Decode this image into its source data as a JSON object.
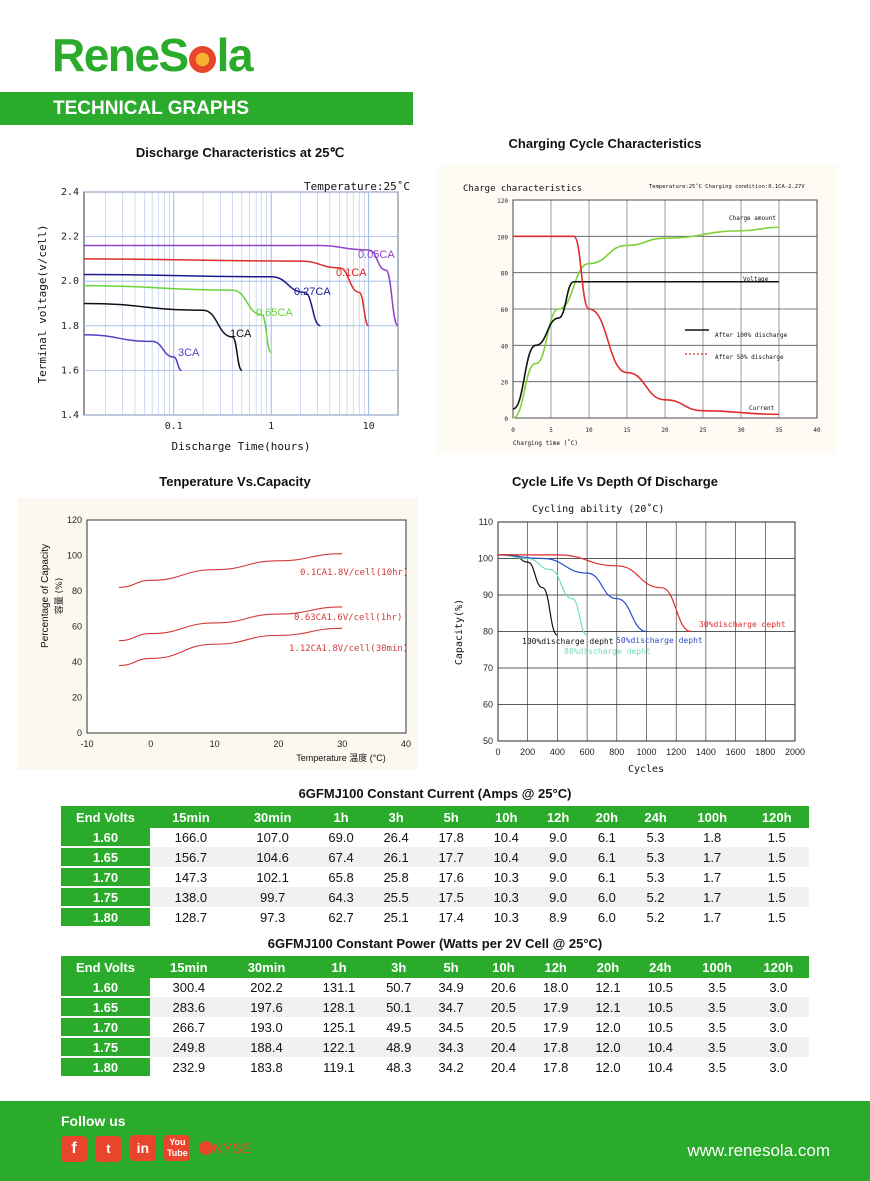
{
  "brand": {
    "name_part1": "Rene",
    "name_part2": "S",
    "name_part3": "la"
  },
  "section_title": "TECHNICAL GRAPHS",
  "charts": {
    "discharge": {
      "title": "Discharge Characteristics at 25℃",
      "annotation": "Temperature:25˚C",
      "xlabel": "Discharge Time(hours)",
      "ylabel": "Terminal voltage(v/cell)"
    },
    "charging": {
      "title": "Charging Cycle Characteristics",
      "subtitle": "Charge characteristics",
      "condition": "Temperature:25˚C Charging condition:0.1CA-2.27V",
      "xlabel": "Charging time (˚C)"
    },
    "temperature": {
      "title": "Tenperature Vs.Capacity",
      "xlabel": "Temperature 温度 (°C)",
      "ylabel": "Percentage of Capacity",
      "ylabel2": "容量 (%)"
    },
    "cycle": {
      "title": "Cycle Life Vs Depth Of Discharge",
      "subtitle": "Cycling ability (20˚C)",
      "xlabel": "Cycles",
      "ylabel": "Capacity(%)"
    }
  },
  "chart_data": [
    {
      "type": "line",
      "title": "Discharge Characteristics at 25℃",
      "xlabel": "Discharge Time(hours)",
      "ylabel": "Terminal voltage(v/cell)",
      "xscale": "log",
      "xlim": [
        0.012,
        20
      ],
      "ylim": [
        1.4,
        2.4
      ],
      "xticks": [
        "0.1",
        "1",
        "10"
      ],
      "yticks": [
        "1.4",
        "1.6",
        "1.8",
        "2.0",
        "2.2",
        "2.4"
      ],
      "grid": true,
      "series": [
        {
          "name": "0.05CA",
          "color": "#8e44c8",
          "x": [
            0.012,
            3,
            10,
            15,
            20
          ],
          "y": [
            2.16,
            2.16,
            2.14,
            2.05,
            1.8
          ]
        },
        {
          "name": "0.1CA",
          "color": "#e02b2b",
          "x": [
            0.012,
            2,
            5,
            8,
            10
          ],
          "y": [
            2.1,
            2.09,
            2.06,
            1.95,
            1.8
          ]
        },
        {
          "name": "0.27CA",
          "color": "#1a1a8c",
          "x": [
            0.012,
            1,
            2.2,
            3.2
          ],
          "y": [
            2.03,
            2.02,
            1.95,
            1.8
          ]
        },
        {
          "name": "0.65CA",
          "color": "#6ad33a",
          "x": [
            0.012,
            0.4,
            0.8,
            1.0
          ],
          "y": [
            1.98,
            1.96,
            1.85,
            1.68
          ]
        },
        {
          "name": "1CA",
          "color": "#111111",
          "x": [
            0.012,
            0.2,
            0.4,
            0.5
          ],
          "y": [
            1.9,
            1.87,
            1.75,
            1.6
          ]
        },
        {
          "name": "3CA",
          "color": "#5a3cc8",
          "x": [
            0.012,
            0.06,
            0.1,
            0.12
          ],
          "y": [
            1.76,
            1.73,
            1.66,
            1.6
          ]
        }
      ]
    },
    {
      "type": "line",
      "title": "Charging Cycle Characteristics",
      "xlabel": "Charging time (˚C)",
      "xlim": [
        0,
        40
      ],
      "ylim": [
        0,
        120
      ],
      "xticks": [
        "0",
        "5",
        "10",
        "15",
        "20",
        "25",
        "30",
        "35",
        "40"
      ],
      "yticks": [
        "0",
        "20",
        "40",
        "60",
        "80",
        "100",
        "120"
      ],
      "series": [
        {
          "name": "Charge amount",
          "color": "#7dd23a",
          "x": [
            0,
            3,
            6,
            10,
            15,
            20,
            30,
            35
          ],
          "y": [
            0,
            30,
            60,
            85,
            95,
            99,
            103,
            105
          ]
        },
        {
          "name": "Voltage",
          "color": "#111111",
          "x": [
            0,
            3,
            6,
            8,
            35
          ],
          "y": [
            5,
            40,
            55,
            75,
            75
          ]
        },
        {
          "name": "Current",
          "color": "#e02b2b",
          "x": [
            0,
            8,
            10,
            15,
            20,
            25,
            35
          ],
          "y": [
            100,
            100,
            60,
            25,
            10,
            4,
            2
          ]
        }
      ],
      "legend": [
        "After 100% discharge",
        "After 50% discharge"
      ]
    },
    {
      "type": "line",
      "title": "Tenperature Vs.Capacity",
      "xlabel": "Temperature 温度 (°C)",
      "ylabel": "Percentage of Capacity",
      "xlim": [
        -10,
        40
      ],
      "ylim": [
        0,
        120
      ],
      "xticks": [
        "-10",
        "0",
        "10",
        "20",
        "30",
        "40"
      ],
      "yticks": [
        "0",
        "20",
        "40",
        "60",
        "80",
        "100",
        "120"
      ],
      "series": [
        {
          "name": "0.1CA1.8V/cell(10hr)",
          "color": "#d23a3a",
          "x": [
            -5,
            0,
            10,
            20,
            30
          ],
          "y": [
            82,
            86,
            92,
            97,
            101
          ]
        },
        {
          "name": "0.63CA1.6V/cell(1hr)",
          "color": "#d23a3a",
          "x": [
            -5,
            0,
            10,
            20,
            30
          ],
          "y": [
            52,
            56,
            62,
            67,
            71
          ]
        },
        {
          "name": "1.12CA1.8V/cell(30min)",
          "color": "#d23a3a",
          "x": [
            -5,
            0,
            10,
            20,
            30
          ],
          "y": [
            38,
            42,
            50,
            55,
            59
          ]
        }
      ]
    },
    {
      "type": "line",
      "title": "Cycle Life Vs Depth Of Discharge",
      "xlabel": "Cycles",
      "ylabel": "Capacity(%)",
      "xlim": [
        0,
        2000
      ],
      "ylim": [
        50,
        110
      ],
      "xticks": [
        "0",
        "200",
        "400",
        "600",
        "800",
        "1000",
        "1200",
        "1400",
        "1600",
        "1800",
        "2000"
      ],
      "yticks": [
        "50",
        "60",
        "70",
        "80",
        "90",
        "100",
        "110"
      ],
      "series": [
        {
          "name": "100%discharge depht",
          "color": "#111111",
          "x": [
            0,
            100,
            200,
            300,
            400
          ],
          "y": [
            101,
            101,
            99,
            92,
            79
          ]
        },
        {
          "name": "80%discharge depht",
          "color": "#6fe0b0",
          "x": [
            0,
            200,
            350,
            500,
            600
          ],
          "y": [
            101,
            100,
            97,
            89,
            79
          ]
        },
        {
          "name": "50%discharge depht",
          "color": "#2a50c8",
          "x": [
            0,
            300,
            600,
            800,
            1000
          ],
          "y": [
            101,
            100,
            96,
            89,
            80
          ]
        },
        {
          "name": "30%discharge depht",
          "color": "#e02b2b",
          "x": [
            0,
            400,
            800,
            1100,
            1300
          ],
          "y": [
            101,
            101,
            98,
            92,
            80
          ]
        }
      ]
    }
  ],
  "tables": {
    "headers": [
      "End Volts",
      "15min",
      "30min",
      "1h",
      "3h",
      "5h",
      "10h",
      "12h",
      "20h",
      "24h",
      "100h",
      "120h"
    ],
    "current": {
      "title": "6GFMJ100 Constant Current (Amps @ 25°C)",
      "rows": [
        [
          "1.60",
          "166.0",
          "107.0",
          "69.0",
          "26.4",
          "17.8",
          "10.4",
          "9.0",
          "6.1",
          "5.3",
          "1.8",
          "1.5"
        ],
        [
          "1.65",
          "156.7",
          "104.6",
          "67.4",
          "26.1",
          "17.7",
          "10.4",
          "9.0",
          "6.1",
          "5.3",
          "1.7",
          "1.5"
        ],
        [
          "1.70",
          "147.3",
          "102.1",
          "65.8",
          "25.8",
          "17.6",
          "10.3",
          "9.0",
          "6.1",
          "5.3",
          "1.7",
          "1.5"
        ],
        [
          "1.75",
          "138.0",
          "99.7",
          "64.3",
          "25.5",
          "17.5",
          "10.3",
          "9.0",
          "6.0",
          "5.2",
          "1.7",
          "1.5"
        ],
        [
          "1.80",
          "128.7",
          "97.3",
          "62.7",
          "25.1",
          "17.4",
          "10.3",
          "8.9",
          "6.0",
          "5.2",
          "1.7",
          "1.5"
        ]
      ]
    },
    "power": {
      "title": "6GFMJ100 Constant Power (Watts per 2V Cell @ 25°C)",
      "rows": [
        [
          "1.60",
          "300.4",
          "202.2",
          "131.1",
          "50.7",
          "34.9",
          "20.6",
          "18.0",
          "12.1",
          "10.5",
          "3.5",
          "3.0"
        ],
        [
          "1.65",
          "283.6",
          "197.6",
          "128.1",
          "50.1",
          "34.7",
          "20.5",
          "17.9",
          "12.1",
          "10.5",
          "3.5",
          "3.0"
        ],
        [
          "1.70",
          "266.7",
          "193.0",
          "125.1",
          "49.5",
          "34.5",
          "20.5",
          "17.9",
          "12.0",
          "10.5",
          "3.5",
          "3.0"
        ],
        [
          "1.75",
          "249.8",
          "188.4",
          "122.1",
          "48.9",
          "34.3",
          "20.4",
          "17.8",
          "12.0",
          "10.4",
          "3.5",
          "3.0"
        ],
        [
          "1.80",
          "232.9",
          "183.8",
          "119.1",
          "48.3",
          "34.2",
          "20.4",
          "17.8",
          "12.0",
          "10.4",
          "3.5",
          "3.0"
        ]
      ]
    }
  },
  "footer": {
    "follow_label": "Follow us",
    "social": {
      "facebook": "f",
      "twitter": "t",
      "linkedin": "in",
      "youtube_1": "You",
      "youtube_2": "Tube",
      "nyse": "NYSE"
    },
    "website": "www.renesola.com"
  },
  "colors": {
    "brand_green": "#2bab2b",
    "brand_orange": "#e8452c"
  }
}
